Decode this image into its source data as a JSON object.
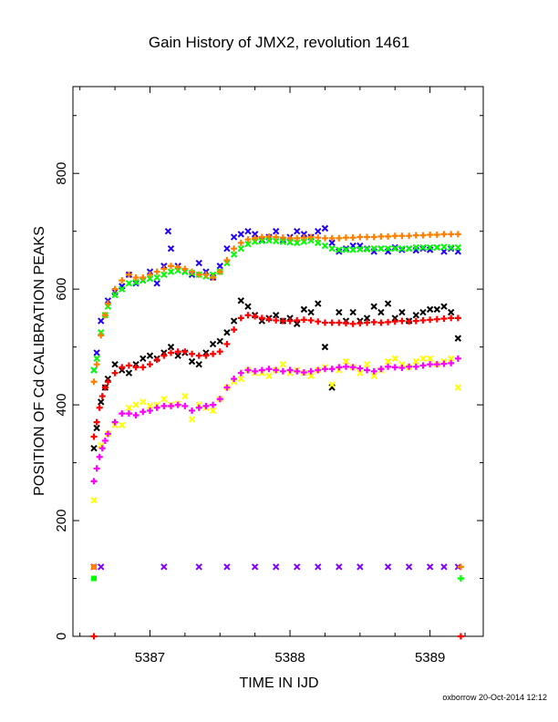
{
  "chart_data": {
    "type": "scatter",
    "title": "Gain History of JMX2, revolution 1461",
    "xlabel": "TIME IN IJD",
    "ylabel": "POSITION OF Cd CALIBRATION PEAKS",
    "xlim": [
      5386.45,
      5389.38
    ],
    "ylim": [
      0,
      950
    ],
    "xticks": [
      5387,
      5388,
      5389
    ],
    "yticks": [
      0,
      200,
      400,
      600,
      800
    ],
    "grid": false,
    "legend": "none",
    "footer": "oxborrow 20-Oct-2014 12:12",
    "series": [
      {
        "marker": "x",
        "color": "#2000ff",
        "x": [
          5386.6,
          5386.62,
          5386.65,
          5386.7,
          5386.75,
          5386.8,
          5386.85,
          5386.9,
          5386.95,
          5387.0,
          5387.05,
          5387.1,
          5387.13,
          5387.15,
          5387.2,
          5387.25,
          5387.3,
          5387.35,
          5387.4,
          5387.45,
          5387.5,
          5387.55,
          5387.6,
          5387.65,
          5387.7,
          5387.75,
          5387.8,
          5387.85,
          5387.9,
          5387.95,
          5388.0,
          5388.05,
          5388.1,
          5388.15,
          5388.2,
          5388.25,
          5388.3,
          5388.35,
          5388.4,
          5388.45,
          5388.5,
          5388.55,
          5388.6,
          5388.65,
          5388.7,
          5388.75,
          5388.8,
          5388.85,
          5388.9,
          5388.95,
          5389.0,
          5389.05,
          5389.1,
          5389.15,
          5389.2
        ],
        "y": [
          460,
          490,
          545,
          580,
          595,
          605,
          625,
          610,
          615,
          630,
          610,
          640,
          700,
          670,
          640,
          630,
          625,
          645,
          630,
          620,
          640,
          670,
          690,
          695,
          700,
          695,
          685,
          690,
          700,
          685,
          690,
          700,
          695,
          690,
          700,
          705,
          680,
          665,
          670,
          675,
          675,
          670,
          665,
          670,
          665,
          672,
          668,
          670,
          667,
          670,
          668,
          672,
          665,
          670,
          665
        ]
      },
      {
        "marker": "x",
        "color": "#00ff00",
        "x": [
          5386.6,
          5386.62,
          5386.65,
          5386.68,
          5386.7,
          5386.75,
          5386.8,
          5386.85,
          5386.9,
          5386.95,
          5387.0,
          5387.05,
          5387.1,
          5387.15,
          5387.2,
          5387.25,
          5387.3,
          5387.35,
          5387.4,
          5387.45,
          5387.5,
          5387.55,
          5387.6,
          5387.65,
          5387.7,
          5387.75,
          5387.8,
          5387.85,
          5387.9,
          5387.95,
          5388.0,
          5388.05,
          5388.1,
          5388.15,
          5388.2,
          5388.25,
          5388.3,
          5388.35,
          5388.4,
          5388.45,
          5388.5,
          5388.55,
          5388.6,
          5388.65,
          5388.7,
          5388.75,
          5388.8,
          5388.85,
          5388.9,
          5388.95,
          5389.0,
          5389.05,
          5389.1,
          5389.15,
          5389.2
        ],
        "y": [
          460,
          480,
          525,
          555,
          570,
          590,
          600,
          610,
          612,
          615,
          618,
          620,
          625,
          630,
          632,
          630,
          628,
          625,
          622,
          625,
          630,
          645,
          660,
          670,
          678,
          682,
          683,
          684,
          683,
          682,
          681,
          680,
          682,
          684,
          680,
          675,
          670,
          668,
          668,
          668,
          669,
          669,
          670,
          670,
          670,
          670,
          670,
          670,
          672,
          672,
          672,
          672,
          673,
          672,
          672
        ]
      },
      {
        "marker": "+",
        "color": "#ff8000",
        "x": [
          5386.6,
          5386.62,
          5386.65,
          5386.68,
          5386.7,
          5386.75,
          5386.8,
          5386.85,
          5386.9,
          5386.95,
          5387.0,
          5387.05,
          5387.1,
          5387.15,
          5387.2,
          5387.25,
          5387.3,
          5387.35,
          5387.4,
          5387.45,
          5387.5,
          5387.55,
          5387.6,
          5387.65,
          5387.7,
          5387.75,
          5387.8,
          5387.85,
          5387.9,
          5387.95,
          5388.0,
          5388.05,
          5388.1,
          5388.15,
          5388.2,
          5388.25,
          5388.3,
          5388.35,
          5388.4,
          5388.45,
          5388.5,
          5388.55,
          5388.6,
          5388.65,
          5388.7,
          5388.75,
          5388.8,
          5388.85,
          5388.9,
          5388.95,
          5389.0,
          5389.05,
          5389.1,
          5389.15,
          5389.2
        ],
        "y": [
          440,
          470,
          520,
          555,
          575,
          600,
          615,
          625,
          620,
          620,
          625,
          630,
          635,
          640,
          638,
          635,
          630,
          625,
          625,
          620,
          630,
          650,
          670,
          680,
          686,
          688,
          690,
          691,
          690,
          689,
          688,
          688,
          689,
          690,
          689,
          688,
          688,
          688,
          689,
          689,
          690,
          690,
          690,
          691,
          691,
          692,
          692,
          692,
          693,
          693,
          694,
          694,
          695,
          695,
          695
        ]
      },
      {
        "marker": "x",
        "color": "#000000",
        "x": [
          5386.6,
          5386.62,
          5386.65,
          5386.68,
          5386.7,
          5386.75,
          5386.8,
          5386.85,
          5386.9,
          5386.95,
          5387.0,
          5387.05,
          5387.1,
          5387.15,
          5387.2,
          5387.25,
          5387.3,
          5387.35,
          5387.4,
          5387.45,
          5387.5,
          5387.55,
          5387.6,
          5387.65,
          5387.7,
          5387.75,
          5387.8,
          5387.85,
          5387.9,
          5387.95,
          5388.0,
          5388.05,
          5388.1,
          5388.15,
          5388.2,
          5388.25,
          5388.3,
          5388.35,
          5388.4,
          5388.45,
          5388.5,
          5388.55,
          5388.6,
          5388.65,
          5388.7,
          5388.75,
          5388.8,
          5388.85,
          5388.9,
          5388.95,
          5389.0,
          5389.05,
          5389.1,
          5389.15,
          5389.2
        ],
        "y": [
          325,
          360,
          405,
          430,
          445,
          470,
          460,
          455,
          470,
          480,
          485,
          480,
          490,
          500,
          485,
          490,
          475,
          470,
          490,
          505,
          510,
          525,
          545,
          580,
          570,
          555,
          545,
          550,
          555,
          545,
          550,
          540,
          565,
          560,
          575,
          500,
          430,
          560,
          545,
          560,
          545,
          550,
          570,
          560,
          575,
          550,
          560,
          545,
          555,
          560,
          565,
          565,
          570,
          560,
          515
        ]
      },
      {
        "marker": "+",
        "color": "#ff0000",
        "x": [
          5386.6,
          5386.62,
          5386.64,
          5386.66,
          5386.68,
          5386.7,
          5386.75,
          5386.8,
          5386.85,
          5386.9,
          5386.95,
          5387.0,
          5387.05,
          5387.1,
          5387.15,
          5387.2,
          5387.25,
          5387.3,
          5387.35,
          5387.4,
          5387.45,
          5387.5,
          5387.55,
          5387.6,
          5387.65,
          5387.7,
          5387.75,
          5387.8,
          5387.85,
          5387.9,
          5387.95,
          5388.0,
          5388.05,
          5388.1,
          5388.15,
          5388.2,
          5388.25,
          5388.3,
          5388.35,
          5388.4,
          5388.45,
          5388.5,
          5388.55,
          5388.6,
          5388.65,
          5388.7,
          5388.75,
          5388.8,
          5388.85,
          5388.9,
          5388.95,
          5389.0,
          5389.05,
          5389.1,
          5389.15,
          5389.2
        ],
        "y": [
          345,
          370,
          395,
          415,
          430,
          440,
          455,
          465,
          468,
          465,
          465,
          470,
          478,
          485,
          490,
          492,
          492,
          488,
          485,
          485,
          488,
          492,
          505,
          530,
          550,
          555,
          553,
          550,
          548,
          546,
          545,
          545,
          546,
          547,
          546,
          544,
          542,
          542,
          542,
          541,
          540,
          541,
          542,
          543,
          542,
          543,
          544,
          545,
          544,
          545,
          546,
          547,
          548,
          549,
          550,
          550
        ]
      },
      {
        "marker": "x",
        "color": "#ffff00",
        "x": [
          5386.6,
          5386.65,
          5386.7,
          5386.75,
          5386.8,
          5386.85,
          5386.9,
          5386.95,
          5387.0,
          5387.05,
          5387.1,
          5387.15,
          5387.2,
          5387.25,
          5387.3,
          5387.35,
          5387.4,
          5387.45,
          5387.5,
          5387.55,
          5387.6,
          5387.65,
          5387.7,
          5387.75,
          5387.8,
          5387.85,
          5387.9,
          5387.95,
          5388.0,
          5388.05,
          5388.1,
          5388.15,
          5388.2,
          5388.25,
          5388.3,
          5388.35,
          5388.4,
          5388.45,
          5388.5,
          5388.55,
          5388.6,
          5388.65,
          5388.7,
          5388.75,
          5388.8,
          5388.85,
          5388.9,
          5388.95,
          5389.0,
          5389.05,
          5389.1,
          5389.15,
          5389.2
        ],
        "y": [
          235,
          330,
          350,
          365,
          365,
          395,
          400,
          405,
          398,
          400,
          410,
          400,
          402,
          415,
          375,
          400,
          395,
          390,
          410,
          430,
          440,
          445,
          460,
          455,
          455,
          450,
          460,
          470,
          455,
          460,
          455,
          450,
          460,
          465,
          435,
          460,
          475,
          465,
          455,
          470,
          450,
          460,
          475,
          480,
          470,
          465,
          475,
          480,
          480,
          470,
          475,
          480,
          430
        ]
      },
      {
        "marker": "+",
        "color": "#ff00ff",
        "x": [
          5386.6,
          5386.62,
          5386.64,
          5386.66,
          5386.68,
          5386.7,
          5386.75,
          5386.8,
          5386.85,
          5386.9,
          5386.95,
          5387.0,
          5387.05,
          5387.1,
          5387.15,
          5387.2,
          5387.25,
          5387.3,
          5387.35,
          5387.4,
          5387.45,
          5387.5,
          5387.55,
          5387.6,
          5387.65,
          5387.7,
          5387.75,
          5387.8,
          5387.85,
          5387.9,
          5387.95,
          5388.0,
          5388.05,
          5388.1,
          5388.15,
          5388.2,
          5388.25,
          5388.3,
          5388.35,
          5388.4,
          5388.45,
          5388.5,
          5388.55,
          5388.6,
          5388.65,
          5388.7,
          5388.75,
          5388.8,
          5388.85,
          5388.9,
          5388.95,
          5389.0,
          5389.05,
          5389.1,
          5389.15,
          5389.2
        ],
        "y": [
          268,
          290,
          310,
          325,
          338,
          350,
          370,
          385,
          385,
          382,
          388,
          390,
          395,
          398,
          398,
          400,
          398,
          390,
          395,
          398,
          400,
          410,
          430,
          445,
          455,
          460,
          458,
          460,
          462,
          460,
          458,
          460,
          458,
          456,
          458,
          460,
          462,
          462,
          465,
          466,
          465,
          463,
          460,
          458,
          462,
          466,
          465,
          464,
          466,
          466,
          468,
          470,
          470,
          471,
          472,
          480
        ]
      },
      {
        "marker": "x",
        "color": "#8000ff",
        "x": [
          5386.6,
          5386.65,
          5387.1,
          5387.35,
          5387.55,
          5387.75,
          5387.9,
          5388.05,
          5388.2,
          5388.35,
          5388.5,
          5388.7,
          5388.85,
          5389.0,
          5389.1,
          5389.2
        ],
        "y": [
          120,
          120,
          120,
          120,
          120,
          120,
          120,
          120,
          120,
          120,
          120,
          120,
          120,
          120,
          120,
          120
        ]
      },
      {
        "marker": "square",
        "color": "#ff8000",
        "x": [
          5386.6
        ],
        "y": [
          120
        ]
      },
      {
        "marker": "square",
        "color": "#00ff00",
        "x": [
          5386.6
        ],
        "y": [
          100
        ]
      },
      {
        "marker": "+",
        "color": "#ff8000",
        "x": [
          5389.22
        ],
        "y": [
          120
        ]
      },
      {
        "marker": "+",
        "color": "#00ff00",
        "x": [
          5389.22
        ],
        "y": [
          100
        ]
      },
      {
        "marker": "+",
        "color": "#ff0000",
        "x": [
          5386.6,
          5389.22
        ],
        "y": [
          0,
          0
        ]
      }
    ]
  }
}
